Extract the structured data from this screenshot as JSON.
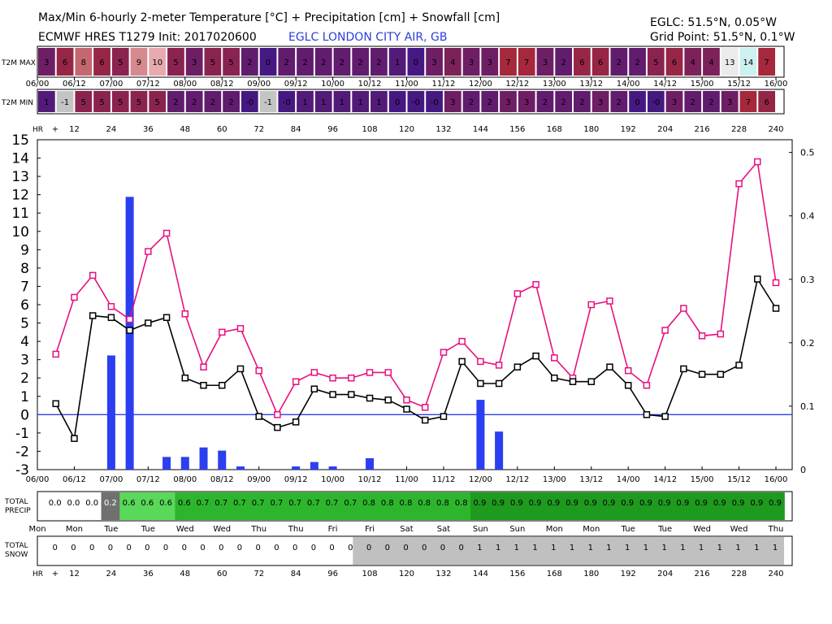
{
  "header": {
    "title": "Max/Min 6-hourly 2-meter Temperature [°C] + Precipitation [cm] + Snowfall [cm]",
    "model": "ECMWF HRES T1279 Init: 2017020600",
    "station": "EGLC LONDON CITY AIR, GB",
    "location": "EGLC: 51.5°N, 0.05°W",
    "grid_point": "Grid Point: 51.5°N, 0.1°W"
  },
  "rows": {
    "t2m_max_label": "T2M MAX",
    "t2m_min_label": "T2M MIN",
    "hr_label": "HR",
    "total_precip_label": [
      "TOTAL",
      "PRECIP"
    ],
    "total_snow_label": [
      "TOTAL",
      "SNOW"
    ]
  },
  "colors": {
    "max_line": "#e8107f",
    "min_line": "#000000",
    "precip_bar": "#2b3ff0",
    "zero_line": "#2b3ff0",
    "snow_cell": "#c0c0c0",
    "precip_dark": "#707070",
    "precip_light": "#5ad85a",
    "precip_mid": "#2db62d",
    "precip_deep": "#1e9a1e"
  },
  "chart_data": {
    "type": "line",
    "x_hours": [
      6,
      12,
      18,
      24,
      30,
      36,
      42,
      48,
      54,
      60,
      66,
      72,
      78,
      84,
      90,
      96,
      102,
      108,
      114,
      120,
      126,
      132,
      138,
      144,
      150,
      156,
      162,
      168,
      174,
      180,
      186,
      192,
      198,
      204,
      210,
      216,
      222,
      228,
      234,
      240
    ],
    "date_ticks": [
      "06/00",
      "06/12",
      "07/00",
      "07/12",
      "08/00",
      "08/12",
      "09/00",
      "09/12",
      "10/00",
      "10/12",
      "11/00",
      "11/12",
      "12/00",
      "12/12",
      "13/00",
      "13/12",
      "14/00",
      "14/12",
      "15/00",
      "15/12",
      "16/00"
    ],
    "hr_ticks": [
      "+",
      "12",
      "24",
      "36",
      "48",
      "60",
      "72",
      "84",
      "96",
      "108",
      "120",
      "132",
      "144",
      "156",
      "168",
      "180",
      "192",
      "204",
      "216",
      "228",
      "240"
    ],
    "day_ticks": [
      "Mon",
      "Mon",
      "Tue",
      "Tue",
      "Wed",
      "Wed",
      "Thu",
      "Thu",
      "Fri",
      "Fri",
      "Sat",
      "Sat",
      "Sun",
      "Sun",
      "Mon",
      "Mon",
      "Tue",
      "Tue",
      "Wed",
      "Wed",
      "Thu"
    ],
    "y_left": {
      "ylim": [
        -3,
        15
      ],
      "ticks": [
        -3,
        -2,
        -1,
        0,
        1,
        2,
        3,
        4,
        5,
        6,
        7,
        8,
        9,
        10,
        11,
        12,
        13,
        14,
        15
      ]
    },
    "y_right": {
      "ylim": [
        0,
        0.52
      ],
      "ticks": [
        "0",
        "0.1",
        "0.2",
        "0.3",
        "0.4",
        "0.5"
      ]
    },
    "grid": false,
    "series": [
      {
        "values": [
          3.3,
          6.4,
          7.6,
          5.9,
          5.2,
          8.9,
          9.9,
          5.5,
          2.6,
          4.5,
          4.7,
          2.4,
          0.0,
          1.8,
          2.3,
          2.0,
          2.0,
          2.3,
          2.3,
          0.8,
          0.4,
          3.4,
          4.0,
          2.9,
          2.7,
          6.6,
          7.1,
          3.1,
          2.0,
          6.0,
          6.2,
          2.4,
          1.6,
          4.6,
          5.8,
          4.3,
          4.4,
          12.6,
          13.8,
          7.2
        ]
      },
      {
        "values": [
          0.6,
          -1.3,
          5.4,
          5.3,
          4.6,
          5.0,
          5.3,
          2.0,
          1.6,
          1.6,
          2.5,
          -0.1,
          -0.7,
          -0.4,
          1.4,
          1.1,
          1.1,
          0.9,
          0.8,
          0.3,
          -0.3,
          -0.1,
          2.9,
          1.7,
          1.7,
          2.6,
          3.2,
          2.0,
          1.8,
          1.8,
          2.6,
          1.6,
          0.0,
          -0.1,
          2.5,
          2.2,
          2.2,
          2.7,
          7.4,
          5.8
        ]
      }
    ],
    "precip_bars": [
      {
        "x": 24,
        "value": 0.18
      },
      {
        "x": 30,
        "value": 0.43
      },
      {
        "x": 42,
        "value": 0.02
      },
      {
        "x": 48,
        "value": 0.02
      },
      {
        "x": 54,
        "value": 0.035
      },
      {
        "x": 60,
        "value": 0.03
      },
      {
        "x": 66,
        "value": 0.005
      },
      {
        "x": 84,
        "value": 0.005
      },
      {
        "x": 90,
        "value": 0.012
      },
      {
        "x": 96,
        "value": 0.005
      },
      {
        "x": 108,
        "value": 0.018
      },
      {
        "x": 144,
        "value": 0.11
      },
      {
        "x": 150,
        "value": 0.06
      }
    ],
    "t2m_max_row": [
      "3",
      "6",
      "8",
      "6",
      "5",
      "9",
      "10",
      "5",
      "3",
      "5",
      "5",
      "2",
      "0",
      "2",
      "2",
      "2",
      "2",
      "2",
      "2",
      "1",
      "0",
      "3",
      "4",
      "3",
      "3",
      "7",
      "7",
      "3",
      "2",
      "6",
      "6",
      "2",
      "2",
      "5",
      "6",
      "4",
      "4",
      "13",
      "14",
      "7"
    ],
    "t2m_min_row": [
      "1",
      "-1",
      "5",
      "5",
      "5",
      "5",
      "5",
      "2",
      "2",
      "2",
      "2",
      "-0",
      "-1",
      "-0",
      "1",
      "1",
      "1",
      "1",
      "1",
      "0",
      "-0",
      "-0",
      "3",
      "2",
      "2",
      "3",
      "3",
      "2",
      "2",
      "2",
      "3",
      "2",
      "0",
      "-0",
      "3",
      "2",
      "2",
      "3",
      "7",
      "6"
    ],
    "total_precip_row": [
      "0.0",
      "0.0",
      "0.0",
      "0.2",
      "0.6",
      "0.6",
      "0.6",
      "0.6",
      "0.7",
      "0.7",
      "0.7",
      "0.7",
      "0.7",
      "0.7",
      "0.7",
      "0.7",
      "0.7",
      "0.8",
      "0.8",
      "0.8",
      "0.8",
      "0.8",
      "0.8",
      "0.9",
      "0.9",
      "0.9",
      "0.9",
      "0.9",
      "0.9",
      "0.9",
      "0.9",
      "0.9",
      "0.9",
      "0.9",
      "0.9",
      "0.9",
      "0.9",
      "0.9",
      "0.9",
      "0.9"
    ],
    "total_snow_row": [
      "0",
      "0",
      "0",
      "0",
      "0",
      "0",
      "0",
      "0",
      "0",
      "0",
      "0",
      "0",
      "0",
      "0",
      "0",
      "0",
      "0",
      "0",
      "0",
      "0",
      "0",
      "0",
      "0",
      "1",
      "1",
      "1",
      "1",
      "1",
      "1",
      "1",
      "1",
      "1",
      "1",
      "1",
      "1",
      "1",
      "1",
      "1",
      "1",
      "1"
    ]
  }
}
